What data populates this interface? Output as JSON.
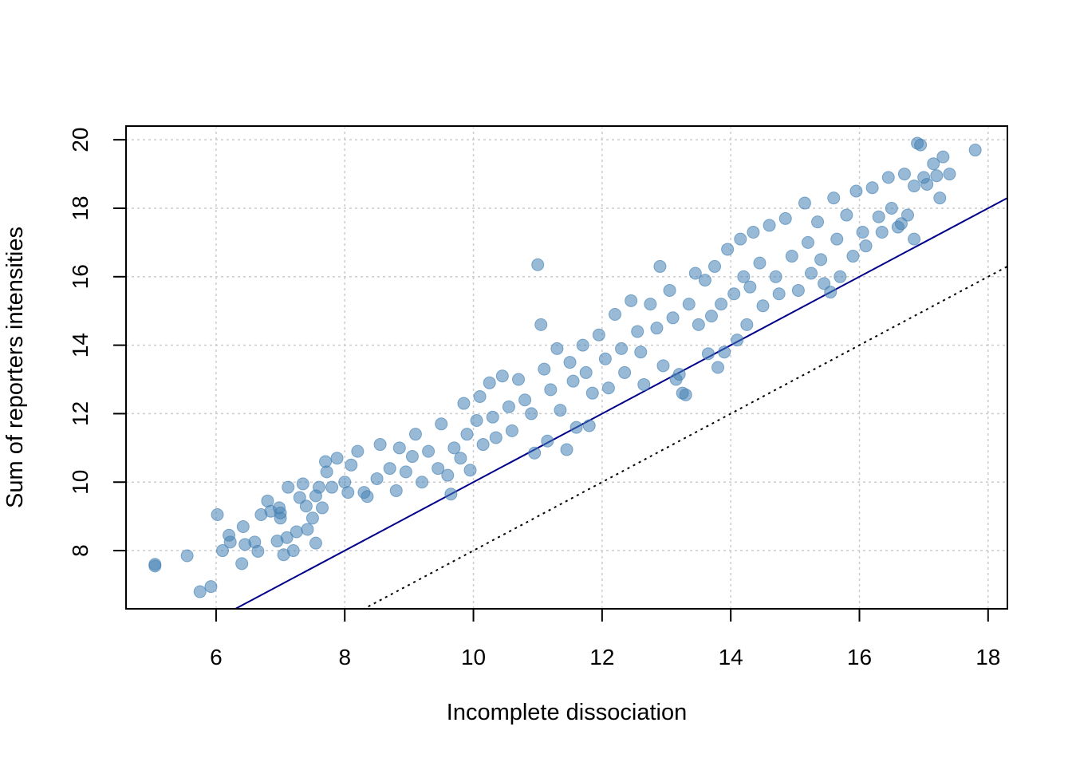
{
  "chart_data": {
    "type": "scatter",
    "title": "",
    "xlabel": "Incomplete dissociation",
    "ylabel": "Sum of reporters intensities",
    "xlim": [
      4.6,
      18.3
    ],
    "ylim": [
      6.3,
      20.4
    ],
    "x_ticks": [
      6,
      8,
      10,
      12,
      14,
      16,
      18
    ],
    "y_ticks": [
      8,
      10,
      12,
      14,
      16,
      18,
      20
    ],
    "grid": true,
    "point_color": "#4682B4",
    "point_alpha": 0.55,
    "reference_lines": [
      {
        "name": "identity",
        "slope": 1,
        "intercept": 0,
        "style": "solid",
        "color": "#00008B"
      },
      {
        "name": "offset",
        "slope": 1,
        "intercept": -2,
        "style": "dotted",
        "color": "#000000"
      }
    ],
    "series": [
      {
        "points": [
          [
            5.05,
            7.6
          ],
          [
            5.05,
            7.55
          ],
          [
            5.55,
            7.85
          ],
          [
            5.75,
            6.8
          ],
          [
            5.92,
            6.95
          ],
          [
            6.02,
            9.05
          ],
          [
            6.1,
            8.0
          ],
          [
            6.2,
            8.45
          ],
          [
            6.22,
            8.25
          ],
          [
            6.4,
            7.62
          ],
          [
            6.42,
            8.7
          ],
          [
            6.45,
            8.18
          ],
          [
            6.6,
            8.25
          ],
          [
            6.65,
            7.98
          ],
          [
            6.7,
            9.05
          ],
          [
            6.8,
            9.45
          ],
          [
            6.85,
            9.15
          ],
          [
            6.95,
            8.28
          ],
          [
            6.98,
            9.25
          ],
          [
            7.0,
            8.95
          ],
          [
            7.0,
            9.1
          ],
          [
            7.05,
            7.88
          ],
          [
            7.1,
            8.38
          ],
          [
            7.12,
            9.85
          ],
          [
            7.2,
            8.0
          ],
          [
            7.25,
            8.55
          ],
          [
            7.3,
            9.55
          ],
          [
            7.35,
            9.95
          ],
          [
            7.4,
            9.3
          ],
          [
            7.42,
            8.62
          ],
          [
            7.5,
            8.95
          ],
          [
            7.55,
            9.6
          ],
          [
            7.55,
            8.22
          ],
          [
            7.6,
            9.85
          ],
          [
            7.65,
            9.25
          ],
          [
            7.7,
            10.6
          ],
          [
            7.72,
            10.3
          ],
          [
            7.8,
            9.85
          ],
          [
            7.88,
            10.7
          ],
          [
            8.0,
            10.0
          ],
          [
            8.05,
            9.7
          ],
          [
            8.1,
            10.5
          ],
          [
            8.2,
            10.9
          ],
          [
            8.3,
            9.7
          ],
          [
            8.35,
            9.58
          ],
          [
            8.5,
            10.1
          ],
          [
            8.55,
            11.1
          ],
          [
            8.7,
            10.4
          ],
          [
            8.8,
            9.75
          ],
          [
            8.85,
            11.0
          ],
          [
            8.95,
            10.3
          ],
          [
            9.05,
            10.75
          ],
          [
            9.1,
            11.4
          ],
          [
            9.2,
            10.0
          ],
          [
            9.3,
            10.9
          ],
          [
            9.45,
            10.4
          ],
          [
            9.5,
            11.7
          ],
          [
            9.6,
            10.2
          ],
          [
            9.65,
            9.65
          ],
          [
            9.7,
            11.0
          ],
          [
            9.8,
            10.7
          ],
          [
            9.85,
            12.3
          ],
          [
            9.9,
            11.4
          ],
          [
            9.95,
            10.35
          ],
          [
            10.05,
            11.8
          ],
          [
            10.1,
            12.5
          ],
          [
            10.15,
            11.1
          ],
          [
            10.25,
            12.9
          ],
          [
            10.3,
            11.9
          ],
          [
            10.35,
            11.3
          ],
          [
            10.45,
            13.1
          ],
          [
            10.55,
            12.2
          ],
          [
            10.6,
            11.5
          ],
          [
            10.7,
            13.0
          ],
          [
            10.8,
            12.4
          ],
          [
            10.9,
            12.0
          ],
          [
            10.95,
            10.85
          ],
          [
            11.0,
            16.35
          ],
          [
            11.05,
            14.6
          ],
          [
            11.1,
            13.3
          ],
          [
            11.15,
            11.2
          ],
          [
            11.2,
            12.7
          ],
          [
            11.3,
            13.9
          ],
          [
            11.35,
            12.1
          ],
          [
            11.45,
            10.95
          ],
          [
            11.5,
            13.5
          ],
          [
            11.55,
            12.95
          ],
          [
            11.6,
            11.6
          ],
          [
            11.7,
            14.0
          ],
          [
            11.75,
            13.2
          ],
          [
            11.8,
            11.65
          ],
          [
            11.85,
            12.6
          ],
          [
            11.95,
            14.3
          ],
          [
            12.05,
            13.6
          ],
          [
            12.1,
            12.75
          ],
          [
            12.2,
            14.9
          ],
          [
            12.3,
            13.9
          ],
          [
            12.35,
            13.2
          ],
          [
            12.45,
            15.3
          ],
          [
            12.55,
            14.4
          ],
          [
            12.6,
            13.8
          ],
          [
            12.65,
            12.85
          ],
          [
            12.75,
            15.2
          ],
          [
            12.85,
            14.5
          ],
          [
            12.9,
            16.3
          ],
          [
            12.95,
            13.4
          ],
          [
            13.05,
            15.6
          ],
          [
            13.1,
            14.8
          ],
          [
            13.15,
            13.0
          ],
          [
            13.2,
            13.15
          ],
          [
            13.25,
            12.6
          ],
          [
            13.3,
            12.55
          ],
          [
            13.35,
            15.2
          ],
          [
            13.45,
            16.1
          ],
          [
            13.5,
            14.6
          ],
          [
            13.6,
            15.9
          ],
          [
            13.65,
            13.75
          ],
          [
            13.7,
            14.85
          ],
          [
            13.75,
            16.3
          ],
          [
            13.8,
            13.35
          ],
          [
            13.85,
            15.2
          ],
          [
            13.9,
            13.8
          ],
          [
            13.95,
            16.8
          ],
          [
            14.05,
            15.5
          ],
          [
            14.1,
            14.15
          ],
          [
            14.15,
            17.1
          ],
          [
            14.2,
            16.0
          ],
          [
            14.25,
            14.6
          ],
          [
            14.3,
            15.7
          ],
          [
            14.35,
            17.3
          ],
          [
            14.45,
            16.4
          ],
          [
            14.5,
            15.15
          ],
          [
            14.6,
            17.5
          ],
          [
            14.7,
            16.0
          ],
          [
            14.75,
            15.5
          ],
          [
            14.85,
            17.7
          ],
          [
            14.95,
            16.6
          ],
          [
            15.05,
            15.6
          ],
          [
            15.15,
            18.15
          ],
          [
            15.2,
            17.0
          ],
          [
            15.25,
            16.1
          ],
          [
            15.35,
            17.6
          ],
          [
            15.4,
            16.5
          ],
          [
            15.45,
            15.8
          ],
          [
            15.55,
            15.55
          ],
          [
            15.6,
            18.3
          ],
          [
            15.65,
            17.1
          ],
          [
            15.7,
            16.0
          ],
          [
            15.8,
            17.8
          ],
          [
            15.9,
            16.6
          ],
          [
            15.95,
            18.5
          ],
          [
            16.05,
            17.3
          ],
          [
            16.1,
            16.9
          ],
          [
            16.2,
            18.6
          ],
          [
            16.3,
            17.75
          ],
          [
            16.35,
            17.3
          ],
          [
            16.45,
            18.9
          ],
          [
            16.5,
            18.0
          ],
          [
            16.6,
            17.45
          ],
          [
            16.65,
            17.55
          ],
          [
            16.7,
            19.0
          ],
          [
            16.75,
            17.8
          ],
          [
            16.85,
            18.65
          ],
          [
            16.85,
            17.1
          ],
          [
            16.9,
            19.9
          ],
          [
            16.95,
            19.85
          ],
          [
            17.0,
            18.9
          ],
          [
            17.05,
            18.7
          ],
          [
            17.15,
            19.3
          ],
          [
            17.2,
            18.95
          ],
          [
            17.25,
            18.3
          ],
          [
            17.3,
            19.5
          ],
          [
            17.4,
            19.0
          ],
          [
            17.8,
            19.7
          ]
        ]
      }
    ]
  }
}
